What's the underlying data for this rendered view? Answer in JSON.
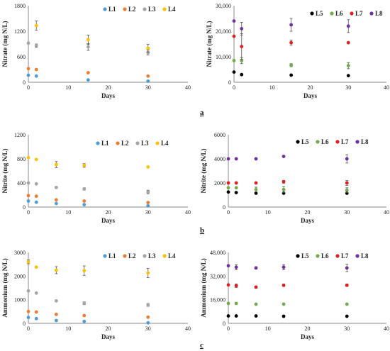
{
  "colors": {
    "L1": "#4e9cd5",
    "L2": "#ed7d31",
    "L3": "#a5a5a5",
    "L4": "#ffc000",
    "L5": "#000000",
    "L6": "#70ad47",
    "L7": "#e02020",
    "L8": "#7030a0"
  },
  "panel_labels": [
    "a",
    "b",
    "c"
  ],
  "chart_data": [
    {
      "type": "scatter",
      "xlabel": "Days",
      "ylabel": "Nitrate (mg N/L)",
      "xlim": [
        0,
        40
      ],
      "xticks": [
        "0",
        "10",
        "20",
        "30",
        "40"
      ],
      "ylim": [
        0,
        1800
      ],
      "yticks": [
        "0",
        "600",
        "1200",
        "1800"
      ],
      "legend_position": "top",
      "series": [
        {
          "name": "L1",
          "color_key": "L1",
          "points": [
            [
              0,
              165
            ],
            [
              2,
              145
            ],
            [
              15,
              55
            ],
            [
              30,
              25
            ]
          ]
        },
        {
          "name": "L2",
          "color_key": "L2",
          "points": [
            [
              0,
              320
            ],
            [
              2,
              300
            ],
            [
              15,
              225
            ],
            [
              30,
              145
            ]
          ]
        },
        {
          "name": "L3",
          "color_key": "L3",
          "points": [
            [
              0,
              920
            ],
            [
              2,
              860
            ],
            [
              15,
              830
            ],
            [
              30,
              700
            ]
          ],
          "err": [
            0,
            40,
            80,
            60
          ]
        },
        {
          "name": "L4",
          "color_key": "L4",
          "points": [
            [
              2,
              1330
            ],
            [
              15,
              1000
            ],
            [
              30,
              800
            ]
          ],
          "err": [
            110,
            110,
            90
          ]
        }
      ]
    },
    {
      "type": "scatter",
      "xlabel": "Days",
      "ylabel": "Nitrate (mg N/L)",
      "xlim": [
        0,
        40
      ],
      "xticks": [
        "0",
        "10",
        "20",
        "30",
        "40"
      ],
      "ylim": [
        0,
        30000
      ],
      "yticks": [
        "0",
        "10,000",
        "20,000",
        "30,000"
      ],
      "legend_position": "top",
      "series": [
        {
          "name": "L5",
          "color_key": "L5",
          "points": [
            [
              0,
              4000
            ],
            [
              2,
              3000
            ],
            [
              15,
              2800
            ],
            [
              30,
              2600
            ]
          ]
        },
        {
          "name": "L6",
          "color_key": "L6",
          "points": [
            [
              0,
              8500
            ],
            [
              2,
              8500
            ],
            [
              15,
              6700
            ],
            [
              30,
              6500
            ]
          ],
          "err": [
            0,
            1200,
            600,
            1200
          ]
        },
        {
          "name": "L7",
          "color_key": "L7",
          "points": [
            [
              0,
              18000
            ],
            [
              2,
              14000
            ],
            [
              15,
              15500
            ],
            [
              30,
              15500
            ]
          ],
          "err": [
            0,
            5000,
            1000,
            0
          ]
        },
        {
          "name": "L8",
          "color_key": "L8",
          "points": [
            [
              0,
              24000
            ],
            [
              2,
              21000
            ],
            [
              15,
              22500
            ],
            [
              30,
              22000
            ]
          ],
          "err": [
            0,
            2500,
            2500,
            2500
          ]
        }
      ]
    },
    {
      "type": "scatter",
      "xlabel": "Days",
      "ylabel": "Nitrite (mg N/L)",
      "xlim": [
        0,
        40
      ],
      "xticks": [
        "0",
        "10",
        "20",
        "30",
        "40"
      ],
      "ylim": [
        0,
        1200
      ],
      "yticks": [
        "0",
        "400",
        "800",
        "1200"
      ],
      "legend_position": "top",
      "series": [
        {
          "name": "L1",
          "color_key": "L1",
          "points": [
            [
              0,
              100
            ],
            [
              2,
              80
            ],
            [
              7,
              60
            ],
            [
              14,
              40
            ],
            [
              30,
              20
            ]
          ]
        },
        {
          "name": "L2",
          "color_key": "L2",
          "points": [
            [
              0,
              190
            ],
            [
              2,
              180
            ],
            [
              7,
              120
            ],
            [
              14,
              100
            ],
            [
              30,
              75
            ]
          ]
        },
        {
          "name": "L3",
          "color_key": "L3",
          "points": [
            [
              0,
              400
            ],
            [
              2,
              385
            ],
            [
              7,
              325
            ],
            [
              14,
              300
            ],
            [
              30,
              250
            ]
          ],
          "err": [
            0,
            0,
            0,
            20,
            30
          ]
        },
        {
          "name": "L4",
          "color_key": "L4",
          "points": [
            [
              0,
              820
            ],
            [
              2,
              790
            ],
            [
              7,
              705
            ],
            [
              14,
              690
            ],
            [
              30,
              665
            ]
          ],
          "err": [
            0,
            0,
            50,
            30,
            0
          ]
        }
      ]
    },
    {
      "type": "scatter",
      "xlabel": "Days",
      "ylabel": "Nitrite (mg N/L)",
      "xlim": [
        0,
        40
      ],
      "xticks": [
        "0",
        "10",
        "20",
        "30",
        "40"
      ],
      "ylim": [
        0,
        6000
      ],
      "yticks": [
        "0",
        "2000",
        "4000",
        "6000"
      ],
      "legend_position": "top",
      "series": [
        {
          "name": "L5",
          "color_key": "L5",
          "points": [
            [
              0,
              1250
            ],
            [
              2,
              1200
            ],
            [
              7,
              1150
            ],
            [
              14,
              1150
            ],
            [
              30,
              1150
            ]
          ]
        },
        {
          "name": "L6",
          "color_key": "L6",
          "points": [
            [
              0,
              1600
            ],
            [
              2,
              1600
            ],
            [
              7,
              1450
            ],
            [
              14,
              1450
            ],
            [
              30,
              1400
            ]
          ],
          "err": [
            0,
            0,
            200,
            250,
            200
          ]
        },
        {
          "name": "L7",
          "color_key": "L7",
          "points": [
            [
              0,
              2000
            ],
            [
              2,
              2000
            ],
            [
              7,
              2000
            ],
            [
              14,
              2100
            ],
            [
              30,
              2000
            ]
          ],
          "err": [
            0,
            0,
            0,
            120,
            200
          ]
        },
        {
          "name": "L8",
          "color_key": "L8",
          "points": [
            [
              0,
              4000
            ],
            [
              2,
              4000
            ],
            [
              7,
              4000
            ],
            [
              14,
              4200
            ],
            [
              30,
              4000
            ]
          ],
          "err": [
            0,
            0,
            0,
            0,
            350
          ]
        }
      ]
    },
    {
      "type": "scatter",
      "xlabel": "Days",
      "ylabel": "Ammonium (mg N/L)",
      "xlim": [
        0,
        40
      ],
      "xticks": [
        "0",
        "10",
        "20",
        "30",
        "40"
      ],
      "ylim": [
        0,
        3000
      ],
      "yticks": [
        "0",
        "1000",
        "2000",
        "3000"
      ],
      "legend_position": "top",
      "series": [
        {
          "name": "L1",
          "color_key": "L1",
          "points": [
            [
              0,
              250
            ],
            [
              2,
              200
            ],
            [
              7,
              120
            ],
            [
              14,
              80
            ],
            [
              30,
              20
            ]
          ]
        },
        {
          "name": "L2",
          "color_key": "L2",
          "points": [
            [
              0,
              500
            ],
            [
              2,
              480
            ],
            [
              7,
              380
            ],
            [
              14,
              330
            ],
            [
              30,
              260
            ]
          ]
        },
        {
          "name": "L3",
          "color_key": "L3",
          "points": [
            [
              0,
              1370
            ],
            [
              2,
              1280
            ],
            [
              7,
              950
            ],
            [
              14,
              850
            ],
            [
              30,
              780
            ]
          ],
          "err": [
            0,
            0,
            0,
            60,
            60
          ]
        },
        {
          "name": "L4",
          "color_key": "L4",
          "points": [
            [
              0,
              2600
            ],
            [
              2,
              2380
            ],
            [
              7,
              2250
            ],
            [
              14,
              2230
            ],
            [
              30,
              2130
            ]
          ],
          "err": [
            80,
            0,
            150,
            200,
            200
          ]
        }
      ]
    },
    {
      "type": "scatter",
      "xlabel": "Days",
      "ylabel": "Ammonium (mg N/L)",
      "xlim": [
        0,
        40
      ],
      "xticks": [
        "0",
        "10",
        "20",
        "30",
        "40"
      ],
      "ylim": [
        0,
        48000
      ],
      "yticks": [
        "0",
        "16,000",
        "32,000",
        "48,000"
      ],
      "legend_position": "top",
      "series": [
        {
          "name": "L5",
          "color_key": "L5",
          "points": [
            [
              0,
              5000
            ],
            [
              2,
              5000
            ],
            [
              7,
              5000
            ],
            [
              14,
              4800
            ],
            [
              30,
              4800
            ]
          ]
        },
        {
          "name": "L6",
          "color_key": "L6",
          "points": [
            [
              0,
              13500
            ],
            [
              2,
              13500
            ],
            [
              7,
              13000
            ],
            [
              14,
              13000
            ],
            [
              30,
              13000
            ]
          ]
        },
        {
          "name": "L7",
          "color_key": "L7",
          "points": [
            [
              0,
              26000
            ],
            [
              2,
              25500
            ],
            [
              7,
              24500
            ],
            [
              14,
              25800
            ],
            [
              30,
              25800
            ]
          ],
          "err": [
            0,
            1200,
            800,
            800,
            800
          ]
        },
        {
          "name": "L8",
          "color_key": "L8",
          "points": [
            [
              0,
              39000
            ],
            [
              2,
              38000
            ],
            [
              7,
              37500
            ],
            [
              14,
              38000
            ],
            [
              30,
              37500
            ]
          ],
          "err": [
            0,
            1800,
            800,
            1800,
            2500
          ]
        }
      ]
    }
  ]
}
